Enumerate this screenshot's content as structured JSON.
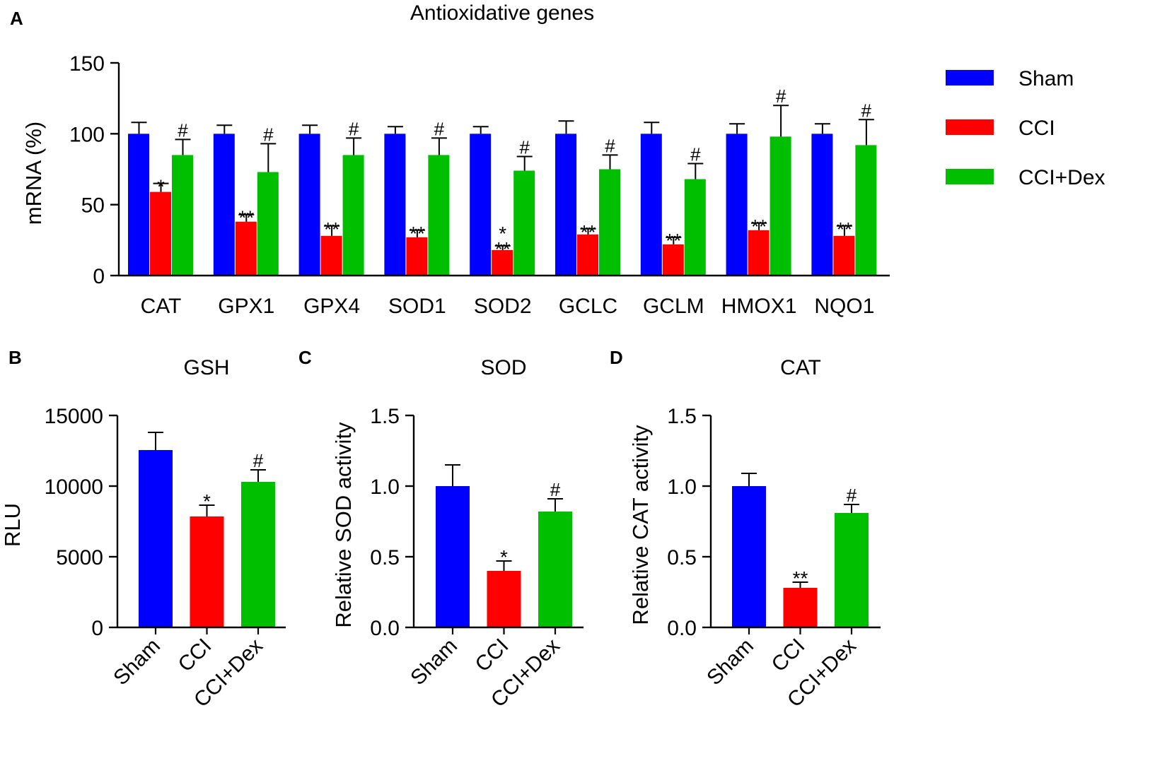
{
  "colors": {
    "Sham": "#0000ff",
    "CCI": "#ff0000",
    "CCI+Dex": "#00bf00",
    "axis": "#000000"
  },
  "legend": [
    "Sham",
    "CCI",
    "CCI+Dex"
  ],
  "chart_data": [
    {
      "panel": "A",
      "type": "bar",
      "title": "Antioxidative genes",
      "xlabel": "",
      "ylabel": "mRNA (%)",
      "ylim": [
        0,
        150
      ],
      "yticks": [
        "0",
        "50",
        "100",
        "150"
      ],
      "categories": [
        "CAT",
        "GPX1",
        "GPX4",
        "SOD1",
        "SOD2",
        "GCLC",
        "GCLM",
        "HMOX1",
        "NQO1"
      ],
      "series": [
        {
          "name": "Sham",
          "values": [
            100,
            100,
            100,
            100,
            100,
            100,
            100,
            100,
            100
          ],
          "errors": [
            8,
            6,
            6,
            5,
            5,
            9,
            8,
            7,
            7
          ],
          "annotations": [
            "",
            "",
            "",
            "",
            "",
            "",
            "",
            "",
            ""
          ]
        },
        {
          "name": "CCI",
          "values": [
            59,
            38,
            28,
            27,
            18,
            29,
            22,
            32,
            28
          ],
          "errors": [
            6,
            5,
            7,
            5,
            3,
            4,
            5,
            5,
            7
          ],
          "annotations": [
            "*",
            "**",
            "**",
            "**",
            "*\n**",
            "**",
            "**",
            "**",
            "**"
          ]
        },
        {
          "name": "CCI+Dex",
          "values": [
            85,
            73,
            85,
            85,
            74,
            75,
            68,
            98,
            92
          ],
          "errors": [
            11,
            20,
            12,
            12,
            10,
            10,
            11,
            22,
            18
          ],
          "annotations": [
            "#",
            "#",
            "#",
            "#",
            "#",
            "#",
            "#",
            "#",
            "#"
          ]
        }
      ],
      "legend_position": "right"
    },
    {
      "panel": "B",
      "type": "bar",
      "title": "GSH",
      "xlabel": "",
      "ylabel": "RLU",
      "ylim": [
        0,
        15000
      ],
      "yticks": [
        "0",
        "5000",
        "10000",
        "15000"
      ],
      "categories": [
        "Sham",
        "CCI",
        "CCI+Dex"
      ],
      "values": [
        12550,
        7850,
        10300
      ],
      "errors": [
        1250,
        800,
        850
      ],
      "annotations": [
        "",
        "*",
        "#"
      ]
    },
    {
      "panel": "C",
      "type": "bar",
      "title": "SOD",
      "xlabel": "",
      "ylabel": "Relative SOD activity",
      "ylim": [
        0,
        1.5
      ],
      "yticks": [
        "0.0",
        "0.5",
        "1.0",
        "1.5"
      ],
      "categories": [
        "Sham",
        "CCI",
        "CCI+Dex"
      ],
      "values": [
        1.0,
        0.4,
        0.82
      ],
      "errors": [
        0.15,
        0.07,
        0.09
      ],
      "annotations": [
        "",
        "*",
        "#"
      ]
    },
    {
      "panel": "D",
      "type": "bar",
      "title": "CAT",
      "xlabel": "",
      "ylabel": "Relative CAT activity",
      "ylim": [
        0,
        1.5
      ],
      "yticks": [
        "0.0",
        "0.5",
        "1.0",
        "1.5"
      ],
      "categories": [
        "Sham",
        "CCI",
        "CCI+Dex"
      ],
      "values": [
        1.0,
        0.28,
        0.81
      ],
      "errors": [
        0.09,
        0.04,
        0.06
      ],
      "annotations": [
        "",
        "**",
        "#"
      ]
    }
  ]
}
